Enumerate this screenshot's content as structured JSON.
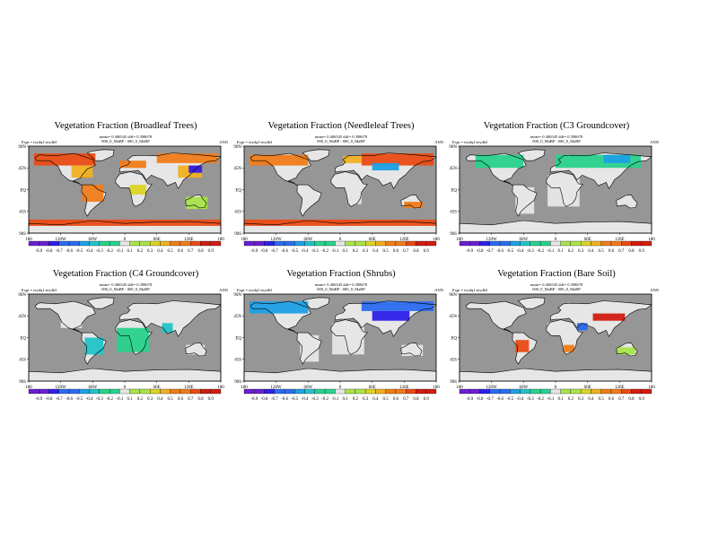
{
  "colors": {
    "ocean": "#969696",
    "land_neutral": "#e6e6e6",
    "coast": "#000000",
    "scale": [
      "#6a1fd1",
      "#2d1fe8",
      "#2b6cf0",
      "#1ea0e6",
      "#22c3c8",
      "#28d28c",
      "#3fe05a",
      "#a9e34a",
      "#dcd424",
      "#f0b020",
      "#f07c1a",
      "#ea4b14",
      "#d21c10"
    ]
  },
  "map_axes": {
    "x_ticks": [
      "180",
      "120W",
      "60W",
      "0",
      "60E",
      "120E",
      "180"
    ],
    "y_ticks": [
      "90N",
      "45N",
      "EQ",
      "45S",
      "90S"
    ]
  },
  "colorbar": {
    "labels": [
      "-0.9",
      "-0.8",
      "-0.7",
      "-0.6",
      "-0.5",
      "-0.4",
      "-0.3",
      "-0.2",
      "-0.1",
      "0.1",
      "0.2",
      "0.3",
      "0.4",
      "0.5",
      "0.6",
      "0.7",
      "0.8",
      "0.9"
    ]
  },
  "chart_data": [
    {
      "type": "heatmap",
      "title": "Vegetation Fraction (Broadleaf Trees)",
      "subtitle_line1": "mean= 0.406545 diff= 0.398678",
      "subtitle_line2": "000_0_MaBP - 000_0_MaBP",
      "expt": "Expt = teydq1-teydh3",
      "season": "ANN",
      "value_range": [
        -0.9,
        0.9
      ],
      "patches": [
        {
          "region": "North America boreal",
          "lon": [
            -170,
            -55
          ],
          "lat": [
            50,
            75
          ],
          "value": 0.7
        },
        {
          "region": "North America east",
          "lon": [
            -100,
            -60
          ],
          "lat": [
            25,
            50
          ],
          "value": 0.5
        },
        {
          "region": "Amazon",
          "lon": [
            -80,
            -40
          ],
          "lat": [
            -25,
            10
          ],
          "value": 0.55
        },
        {
          "region": "Western Europe",
          "lon": [
            -10,
            40
          ],
          "lat": [
            45,
            60
          ],
          "value": 0.6
        },
        {
          "region": "Siberia",
          "lon": [
            60,
            175
          ],
          "lat": [
            55,
            75
          ],
          "value": 0.65
        },
        {
          "region": "China",
          "lon": [
            100,
            145
          ],
          "lat": [
            25,
            50
          ],
          "value": 0.45
        },
        {
          "region": "Central Africa",
          "lon": [
            10,
            40
          ],
          "lat": [
            -10,
            10
          ],
          "value": 0.3
        },
        {
          "region": "Australia",
          "lon": [
            115,
            155
          ],
          "lat": [
            -40,
            -15
          ],
          "value": 0.2
        },
        {
          "region": "East Asia",
          "lon": [
            120,
            145
          ],
          "lat": [
            35,
            50
          ],
          "value": -0.8
        },
        {
          "region": "Southern Ocean",
          "lon": [
            -180,
            180
          ],
          "lat": [
            -75,
            -62
          ],
          "value": 0.75
        }
      ]
    },
    {
      "type": "heatmap",
      "title": "Vegetation Fraction (Needleleaf Trees)",
      "subtitle_line1": "mean= 0.406545 diff= 0.398678",
      "subtitle_line2": "000_0_MaBP - 000_0_MaBP",
      "expt": "Expt = teydq1-teydh3",
      "season": "ANN",
      "value_range": [
        -0.9,
        0.9
      ],
      "patches": [
        {
          "region": "North America boreal",
          "lon": [
            -170,
            -60
          ],
          "lat": [
            50,
            72
          ],
          "value": 0.65
        },
        {
          "region": "Siberia",
          "lon": [
            40,
            175
          ],
          "lat": [
            50,
            75
          ],
          "value": 0.7
        },
        {
          "region": "Scandinavia",
          "lon": [
            5,
            40
          ],
          "lat": [
            55,
            70
          ],
          "value": 0.4
        },
        {
          "region": "Central Asia",
          "lon": [
            60,
            110
          ],
          "lat": [
            40,
            55
          ],
          "value": -0.4
        },
        {
          "region": "Australia",
          "lon": [
            120,
            155
          ],
          "lat": [
            -38,
            -25
          ],
          "value": 0.6
        },
        {
          "region": "Africa",
          "lon": [
            15,
            40
          ],
          "lat": [
            -30,
            15
          ],
          "value": 0.0
        },
        {
          "region": "Southern Ocean",
          "lon": [
            -180,
            180
          ],
          "lat": [
            -75,
            -62
          ],
          "value": 0.75
        }
      ]
    },
    {
      "type": "heatmap",
      "title": "Vegetation Fraction (C3 Groundcover)",
      "subtitle_line1": "mean= 0.406545 diff= 0.398678",
      "subtitle_line2": "000_0_MaBP - 000_0_MaBP",
      "expt": "Expt = teydq1-teydh3",
      "season": "ANN",
      "value_range": [
        -0.9,
        0.9
      ],
      "patches": [
        {
          "region": "North America",
          "lon": [
            -150,
            -60
          ],
          "lat": [
            45,
            72
          ],
          "value": -0.1
        },
        {
          "region": "Eurasia",
          "lon": [
            0,
            160
          ],
          "lat": [
            45,
            72
          ],
          "value": -0.15
        },
        {
          "region": "Siberia",
          "lon": [
            90,
            140
          ],
          "lat": [
            55,
            72
          ],
          "value": -0.5
        },
        {
          "region": "Africa",
          "lon": [
            -15,
            45
          ],
          "lat": [
            -35,
            30
          ],
          "value": 0.0
        },
        {
          "region": "South America",
          "lon": [
            -75,
            -40
          ],
          "lat": [
            -50,
            5
          ],
          "value": 0.0
        }
      ]
    },
    {
      "type": "heatmap",
      "title": "Vegetation Fraction (C4 Groundcover)",
      "subtitle_line1": "mean= 0.406545 diff= 0.398678",
      "subtitle_line2": "000_0_MaBP - 000_0_MaBP",
      "expt": "Expt = teydq1-teydh3",
      "season": "ANN",
      "value_range": [
        -0.9,
        0.9
      ],
      "patches": [
        {
          "region": "North America",
          "lon": [
            -120,
            -80
          ],
          "lat": [
            20,
            50
          ],
          "value": 0.0
        },
        {
          "region": "South America",
          "lon": [
            -75,
            -40
          ],
          "lat": [
            -35,
            0
          ],
          "value": -0.25
        },
        {
          "region": "Africa",
          "lon": [
            -15,
            45
          ],
          "lat": [
            -30,
            20
          ],
          "value": -0.2
        },
        {
          "region": "India",
          "lon": [
            70,
            90
          ],
          "lat": [
            10,
            30
          ],
          "value": -0.3
        },
        {
          "region": "Australia",
          "lon": [
            115,
            150
          ],
          "lat": [
            -35,
            -15
          ],
          "value": 0.0
        }
      ]
    },
    {
      "type": "heatmap",
      "title": "Vegetation Fraction (Shrubs)",
      "subtitle_line1": "mean= 0.406545 diff= 0.398678",
      "subtitle_line2": "000_0_MaBP - 000_0_MaBP",
      "expt": "Expt = teydq1-teydh3",
      "season": "ANN",
      "value_range": [
        -0.9,
        0.9
      ],
      "patches": [
        {
          "region": "North America",
          "lon": [
            -170,
            -60
          ],
          "lat": [
            50,
            75
          ],
          "value": -0.5
        },
        {
          "region": "Eurasia north",
          "lon": [
            40,
            175
          ],
          "lat": [
            55,
            75
          ],
          "value": -0.65
        },
        {
          "region": "Central Asia",
          "lon": [
            60,
            130
          ],
          "lat": [
            35,
            55
          ],
          "value": -0.75
        },
        {
          "region": "Africa",
          "lon": [
            -15,
            45
          ],
          "lat": [
            -35,
            30
          ],
          "value": 0.0
        },
        {
          "region": "South America",
          "lon": [
            -75,
            -40
          ],
          "lat": [
            -50,
            5
          ],
          "value": 0.0
        },
        {
          "region": "Australia",
          "lon": [
            115,
            155
          ],
          "lat": [
            -38,
            -15
          ],
          "value": 0.0
        }
      ]
    },
    {
      "type": "heatmap",
      "title": "Vegetation Fraction (Bare Soil)",
      "subtitle_line1": "mean= 0.406545 diff= 0.398678",
      "subtitle_line2": "000_0_MaBP - 000_0_MaBP",
      "expt": "Expt = teydq1-teydh3",
      "season": "ANN",
      "value_range": [
        -0.9,
        0.9
      ],
      "patches": [
        {
          "region": "Central Asia",
          "lon": [
            70,
            130
          ],
          "lat": [
            35,
            50
          ],
          "value": 0.85
        },
        {
          "region": "Arabia",
          "lon": [
            40,
            60
          ],
          "lat": [
            15,
            30
          ],
          "value": -0.6
        },
        {
          "region": "South America",
          "lon": [
            -75,
            -50
          ],
          "lat": [
            -30,
            -5
          ],
          "value": 0.7
        },
        {
          "region": "Southern Africa",
          "lon": [
            15,
            35
          ],
          "lat": [
            -30,
            -15
          ],
          "value": 0.6
        },
        {
          "region": "Australia",
          "lon": [
            115,
            150
          ],
          "lat": [
            -35,
            -20
          ],
          "value": 0.1
        },
        {
          "region": "Africa north",
          "lon": [
            -15,
            40
          ],
          "lat": [
            10,
            30
          ],
          "value": 0.0
        }
      ]
    }
  ]
}
